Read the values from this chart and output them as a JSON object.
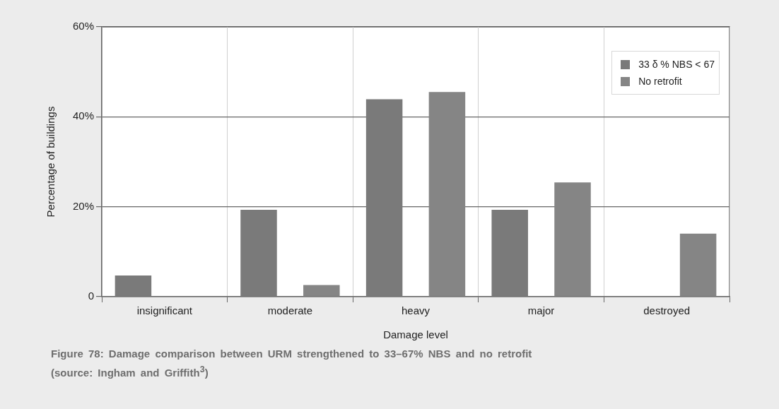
{
  "chart_data": {
    "type": "bar",
    "xlabel": "Damage level",
    "ylabel": "Percentage of buildings",
    "categories": [
      "insignificant",
      "moderate",
      "heavy",
      "major",
      "destroyed"
    ],
    "series": [
      {
        "name": "33 δ % NBS < 67",
        "color": "#7a7a7a",
        "values": [
          4.7,
          19.3,
          43.9,
          19.3,
          0
        ]
      },
      {
        "name": "No retrofit",
        "color": "#858585",
        "values": [
          0,
          2.6,
          45.5,
          25.4,
          14.0
        ]
      }
    ],
    "ylim": [
      0,
      60
    ],
    "yticks": [
      0,
      {
        "value": 20,
        "label": "20%"
      },
      {
        "value": 40,
        "label": "40%"
      },
      {
        "value": 60,
        "label": "60%"
      }
    ],
    "grid": true,
    "legend": "top right",
    "annotations": [
      "Figure 78: Damage comparison between URM strengthened to 33–67% NBS and no retrofit (source: Ingham and Griffith$^{3}$)"
    ]
  }
}
